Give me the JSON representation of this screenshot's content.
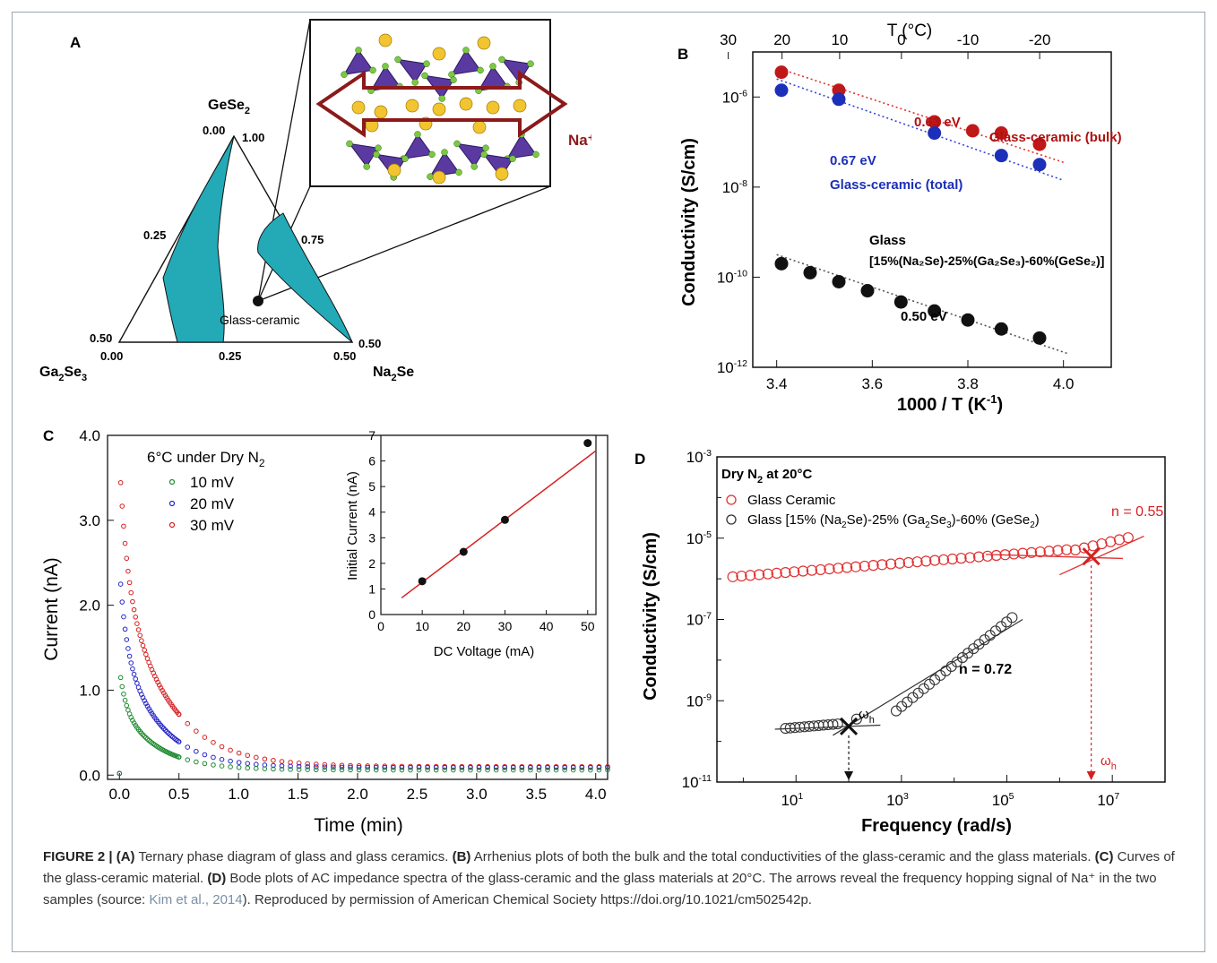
{
  "panelA": {
    "letter": "A",
    "vertices": {
      "top": "GeSe",
      "top_sub": "2",
      "left": "Ga",
      "left_sub1": "2",
      "left_mid": "Se",
      "left_sub2": "3",
      "right": "Na",
      "right_sub": "2",
      "right_mid": "Se"
    },
    "ticks": {
      "t000": "0.00",
      "t100": "1.00",
      "t025": "0.25",
      "t075": "0.75",
      "t050l": "0.50",
      "t000b": "0.00",
      "t025b": "0.25",
      "t050b": "0.50",
      "t050r": "0.50"
    },
    "point_label": "Glass-ceramic",
    "ion_label": "Na⁺",
    "colors": {
      "region": "#23aab6",
      "tetra": "#5a3aa0",
      "na": "#f2c530",
      "se": "#7ac943",
      "arrow": "#8b1a1a"
    }
  },
  "panelB": {
    "letter": "B",
    "top_axis_label": "T (°C)",
    "top_ticks": [
      30,
      20,
      10,
      0,
      -10,
      -20
    ],
    "xlabel": "1000 / T (K",
    "xlabel_sup": "-1",
    "xlabel_end": ")",
    "ylabel": "Conductivity (S/cm)",
    "annotations": {
      "bulk_ea": "0.63 eV",
      "bulk_name": "Glass-ceramic (bulk)",
      "total_ea": "0.67 eV",
      "total_name": "Glass-ceramic (total)",
      "glass_name": "Glass",
      "glass_comp": "[15%(Na₂Se)-25%(Ga₂Se₃)-60%(GeSe₂)]",
      "glass_ea": "0.50 eV"
    }
  },
  "panelC": {
    "letter": "C",
    "xlabel": "Time (min)",
    "ylabel": "Current (nA)",
    "legend_title": "6°C under Dry N",
    "legend_title_sub": "2",
    "inset": {
      "xlabel": "DC Voltage (mA)",
      "ylabel": "Initial Current (nA)"
    }
  },
  "panelD": {
    "letter": "D",
    "xlabel": "Frequency (rad/s)",
    "ylabel": "Conductivity (S/cm)",
    "legend_title": "Dry N",
    "legend_title_sub": "2",
    "legend_title_end": " at 20°C",
    "n_ceramic": "n = 0.55",
    "n_glass": "n = 0.72",
    "omega": "ω",
    "omega_sub": "h"
  },
  "caption": {
    "fig": "FIGURE 2 |",
    "a": "(A)",
    "a_text": " Ternary phase diagram of glass and glass ceramics. ",
    "b": "(B)",
    "b_text": " Arrhenius plots of both the bulk and the total conductivities of the glass-ceramic and the glass materials. ",
    "c": "(C)",
    "c_text": " Curves of the glass-ceramic material. ",
    "d": "(D)",
    "d_text": " Bode plots of AC impedance spectra of the glass-ceramic and the glass materials at 20°C. The arrows reveal the frequency hopping signal of Na⁺ in the two samples (source: ",
    "link": "Kim et al., 2014",
    "end": "). Reproduced by permission of American Chemical Society https://doi.org/10.1021/cm502542p."
  },
  "chart_data": [
    {
      "panel": "B",
      "type": "scatter",
      "xlabel": "1000 / T (K-1)",
      "ylabel": "Conductivity (S/cm)",
      "xlim": [
        3.35,
        4.1
      ],
      "ylim_log10": [
        -12,
        -5
      ],
      "x_ticks": [
        3.4,
        3.6,
        3.8,
        4.0
      ],
      "y_ticks_log10": [
        -12,
        -10,
        -8,
        -6
      ],
      "grid": false,
      "series": [
        {
          "name": "Glass-ceramic (bulk)",
          "color": "#c01818",
          "fit_color": "#e03030",
          "x": [
            3.41,
            3.53,
            3.73,
            3.81,
            3.87,
            3.95
          ],
          "log10_y": [
            -5.45,
            -5.85,
            -6.55,
            -6.75,
            -6.8,
            -7.05
          ],
          "fit_log10": [
            [
              3.4,
              -5.35
            ],
            [
              4.0,
              -7.45
            ]
          ]
        },
        {
          "name": "Glass-ceramic (total)",
          "color": "#1c2fb8",
          "fit_color": "#3344dd",
          "x": [
            3.41,
            3.53,
            3.73,
            3.87,
            3.95
          ],
          "log10_y": [
            -5.85,
            -6.05,
            -6.8,
            -7.3,
            -7.5
          ],
          "fit_log10": [
            [
              3.4,
              -5.6
            ],
            [
              4.0,
              -7.85
            ]
          ]
        },
        {
          "name": "Glass",
          "color": "#111111",
          "fit_color": "#555555",
          "x": [
            3.41,
            3.47,
            3.53,
            3.59,
            3.66,
            3.73,
            3.8,
            3.87,
            3.95
          ],
          "log10_y": [
            -9.7,
            -9.9,
            -10.1,
            -10.3,
            -10.55,
            -10.75,
            -10.95,
            -11.15,
            -11.35
          ],
          "fit_log10": [
            [
              3.4,
              -9.5
            ],
            [
              4.01,
              -11.7
            ]
          ]
        }
      ]
    },
    {
      "panel": "C",
      "type": "scatter",
      "xlabel": "Time (min)",
      "ylabel": "Current (nA)",
      "xlim": [
        -0.1,
        4.1
      ],
      "ylim": [
        -0.05,
        4.0
      ],
      "x_ticks": [
        0.0,
        0.5,
        1.0,
        1.5,
        2.0,
        2.5,
        3.0,
        3.5,
        4.0
      ],
      "y_ticks": [
        0.0,
        1.0,
        2.0,
        3.0,
        4.0
      ],
      "series": [
        {
          "name": "10 mV",
          "color": "#1e8a2e",
          "peak": 1.25,
          "baseline": 0.06,
          "tau": 0.14
        },
        {
          "name": "20 mV",
          "color": "#2424c8",
          "peak": 2.45,
          "baseline": 0.09,
          "tau": 0.14
        },
        {
          "name": "30 mV",
          "color": "#d62020",
          "peak": 3.7,
          "baseline": 0.1,
          "tau": 0.17
        }
      ],
      "inset": {
        "type": "scatter",
        "xlabel": "DC Voltage (mA)",
        "ylabel": "Initial Current (nA)",
        "xlim": [
          0,
          52
        ],
        "ylim": [
          0,
          7
        ],
        "x_ticks": [
          0,
          10,
          20,
          30,
          40,
          50
        ],
        "y_ticks": [
          0,
          1,
          2,
          3,
          4,
          5,
          6,
          7
        ],
        "x": [
          10,
          20,
          30,
          50
        ],
        "y": [
          1.3,
          2.45,
          3.7,
          6.7
        ],
        "fit": [
          [
            5,
            0.65
          ],
          [
            52,
            6.4
          ]
        ]
      }
    },
    {
      "panel": "D",
      "type": "scatter",
      "xlabel": "Frequency (rad/s)",
      "ylabel": "Conductivity (S/cm)",
      "xlim_log10": [
        -0.5,
        8
      ],
      "ylim_log10": [
        -11,
        -3
      ],
      "x_ticks_log10": [
        1,
        3,
        5,
        7
      ],
      "y_ticks_log10": [
        -11,
        -9,
        -7,
        -5,
        -3
      ],
      "series": [
        {
          "name": "Glass Ceramic",
          "color": "#e03030",
          "log10_x_range": [
            -0.2,
            7.3
          ],
          "log10_y_range": [
            -5.95,
            -5.2
          ],
          "n": 0.55,
          "omega_h_log10": 6.6
        },
        {
          "name": "Glass [15% (Na2Se)-25% (Ga2Se3)-60% (GeSe2)",
          "color": "#333333",
          "log10_x_range": [
            0.8,
            5.1
          ],
          "log10_y_range": [
            -9.65,
            -7.1
          ],
          "n": 0.72,
          "omega_h_log10": 2.0
        }
      ]
    }
  ]
}
